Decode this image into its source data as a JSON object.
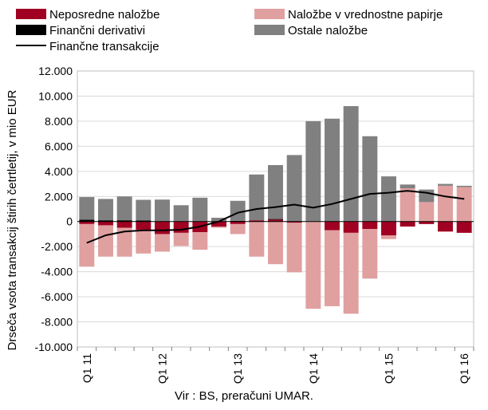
{
  "chart_data": {
    "type": "bar",
    "stacked": true,
    "ylabel": "Drseča vsota transakcij štirih četrtletij, v mio EUR",
    "ylim": [
      -10000,
      12000
    ],
    "yticks": [
      -10000,
      -8000,
      -6000,
      -4000,
      -2000,
      0,
      2000,
      4000,
      6000,
      8000,
      10000,
      12000
    ],
    "ytick_labels": [
      "-10.000",
      "-8.000",
      "-6.000",
      "-4.000",
      "-2.000",
      "0",
      "2.000",
      "4.000",
      "6.000",
      "8.000",
      "10.000",
      "12.000"
    ],
    "grid": true,
    "legend_position": "top",
    "categories": [
      "Q1 11",
      "Q2 11",
      "Q3 11",
      "Q4 11",
      "Q1 12",
      "Q2 12",
      "Q3 12",
      "Q4 12",
      "Q1 13",
      "Q2 13",
      "Q3 13",
      "Q4 13",
      "Q1 14",
      "Q2 14",
      "Q3 14",
      "Q4 14",
      "Q1 15",
      "Q2 15",
      "Q3 15",
      "Q4 15",
      "Q1 16"
    ],
    "x_tick_labels": [
      {
        "index": 0,
        "label": "Q1 11"
      },
      {
        "index": 4,
        "label": "Q1 12"
      },
      {
        "index": 8,
        "label": "Q1 13"
      },
      {
        "index": 12,
        "label": "Q1 14"
      },
      {
        "index": 16,
        "label": "Q1 15"
      },
      {
        "index": 20,
        "label": "Q1 16"
      }
    ],
    "series": [
      {
        "name": "Neposredne naložbe",
        "kind": "bar",
        "color": "#a00021",
        "values": [
          -200,
          -300,
          -500,
          -650,
          -1000,
          -900,
          -850,
          -400,
          -200,
          100,
          150,
          -100,
          0,
          -700,
          -900,
          -600,
          -1100,
          -400,
          -200,
          -800,
          -900
        ]
      },
      {
        "name": "Naložbe v vrednostne papirje",
        "kind": "bar",
        "color": "#e0a0a0",
        "values": [
          -3400,
          -2500,
          -2300,
          -1900,
          -1400,
          -1050,
          -1400,
          -100,
          -800,
          -2800,
          -3400,
          -3950,
          -6950,
          -6050,
          -6450,
          -3950,
          -300,
          2650,
          1550,
          2850,
          2750
        ]
      },
      {
        "name": "Finančni derivativi",
        "kind": "bar",
        "color": "#000000",
        "values": [
          150,
          100,
          100,
          80,
          0,
          0,
          0,
          0,
          50,
          0,
          50,
          0,
          0,
          0,
          0,
          0,
          0,
          0,
          0,
          0,
          0
        ]
      },
      {
        "name": "Ostale naložbe",
        "kind": "bar",
        "color": "#808080",
        "values": [
          1800,
          1700,
          1900,
          1650,
          1750,
          1300,
          1900,
          300,
          1600,
          3650,
          4300,
          5300,
          8000,
          8200,
          9200,
          6800,
          3600,
          300,
          1000,
          150,
          100
        ]
      },
      {
        "name": "Finančne transakcije",
        "kind": "line",
        "color": "#000000",
        "values": [
          -1700,
          -1100,
          -800,
          -700,
          -700,
          -650,
          -400,
          0,
          700,
          1000,
          1150,
          1350,
          1100,
          1400,
          1800,
          2200,
          2300,
          2450,
          2300,
          2000,
          1800
        ]
      }
    ]
  },
  "source": "Vir : BS, preračuni UMAR."
}
